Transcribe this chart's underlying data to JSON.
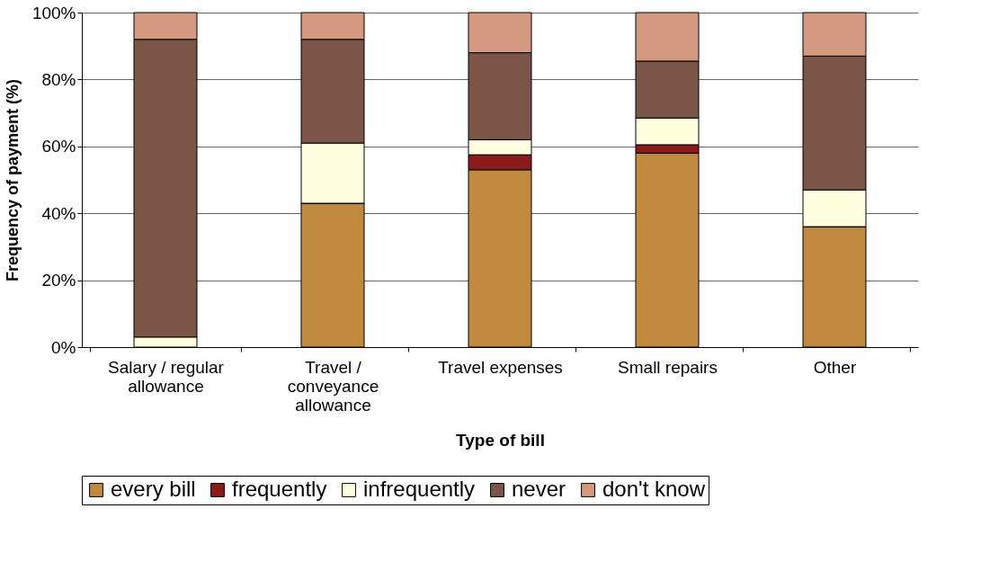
{
  "chart_data": {
    "type": "bar",
    "stacked": true,
    "xlabel": "Type of bill",
    "ylabel": "Frequency of payment (%)",
    "categories": [
      "Salary / regular allowance",
      "Travel / conveyance allowance",
      "Travel expenses",
      "Small repairs",
      "Other"
    ],
    "series": [
      {
        "name": "every bill",
        "color": "#c08a3e",
        "values": [
          0,
          43,
          53,
          58,
          36
        ]
      },
      {
        "name": "frequently",
        "color": "#8b1a1a",
        "values": [
          0,
          0,
          4.5,
          2.5,
          0
        ]
      },
      {
        "name": "infrequently",
        "color": "#ffffe0",
        "values": [
          3,
          18,
          4.5,
          8,
          11
        ]
      },
      {
        "name": "never",
        "color": "#7a5548",
        "values": [
          89,
          31,
          26,
          17,
          40
        ]
      },
      {
        "name": "don't know",
        "color": "#d49a80",
        "values": [
          8,
          8,
          12,
          14.5,
          13
        ]
      }
    ],
    "ylim": [
      0,
      100
    ],
    "yticks": [
      {
        "value": 0,
        "label": "0%"
      },
      {
        "value": 20,
        "label": "20%"
      },
      {
        "value": 40,
        "label": "40%"
      },
      {
        "value": 60,
        "label": "60%"
      },
      {
        "value": 80,
        "label": "80%"
      },
      {
        "value": 100,
        "label": "100%"
      }
    ],
    "grid": "y",
    "legend": "bottom"
  }
}
